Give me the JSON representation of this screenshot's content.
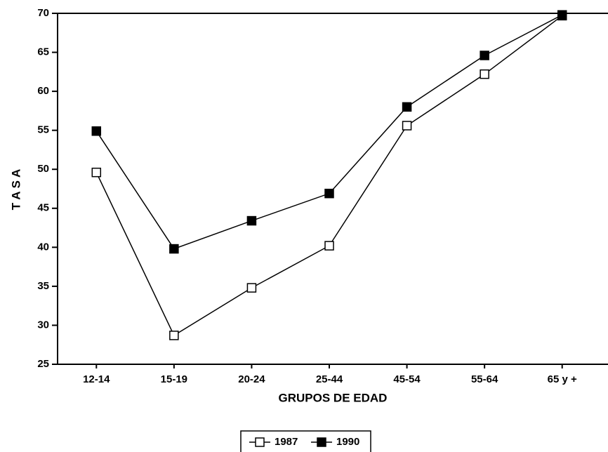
{
  "chart_data": {
    "type": "line",
    "ylabel": "T A S A",
    "xlabel": "GRUPOS DE EDAD",
    "categories": [
      "12-14",
      "15-19",
      "20-24",
      "25-44",
      "45-54",
      "55-64",
      "65 y +"
    ],
    "series": [
      {
        "name": "1987",
        "color": "#000000",
        "marker": "open-square",
        "values": [
          49.6,
          28.7,
          34.8,
          40.2,
          55.6,
          62.2,
          69.7
        ]
      },
      {
        "name": "1990",
        "color": "#000000",
        "marker": "filled-square",
        "values": [
          54.9,
          39.8,
          43.4,
          46.9,
          58.0,
          64.6,
          69.8
        ]
      }
    ],
    "ylim": [
      25,
      70
    ],
    "yticks": [
      25,
      30,
      35,
      40,
      45,
      50,
      55,
      60,
      65,
      70
    ],
    "grid": false,
    "legend": "bottom"
  }
}
